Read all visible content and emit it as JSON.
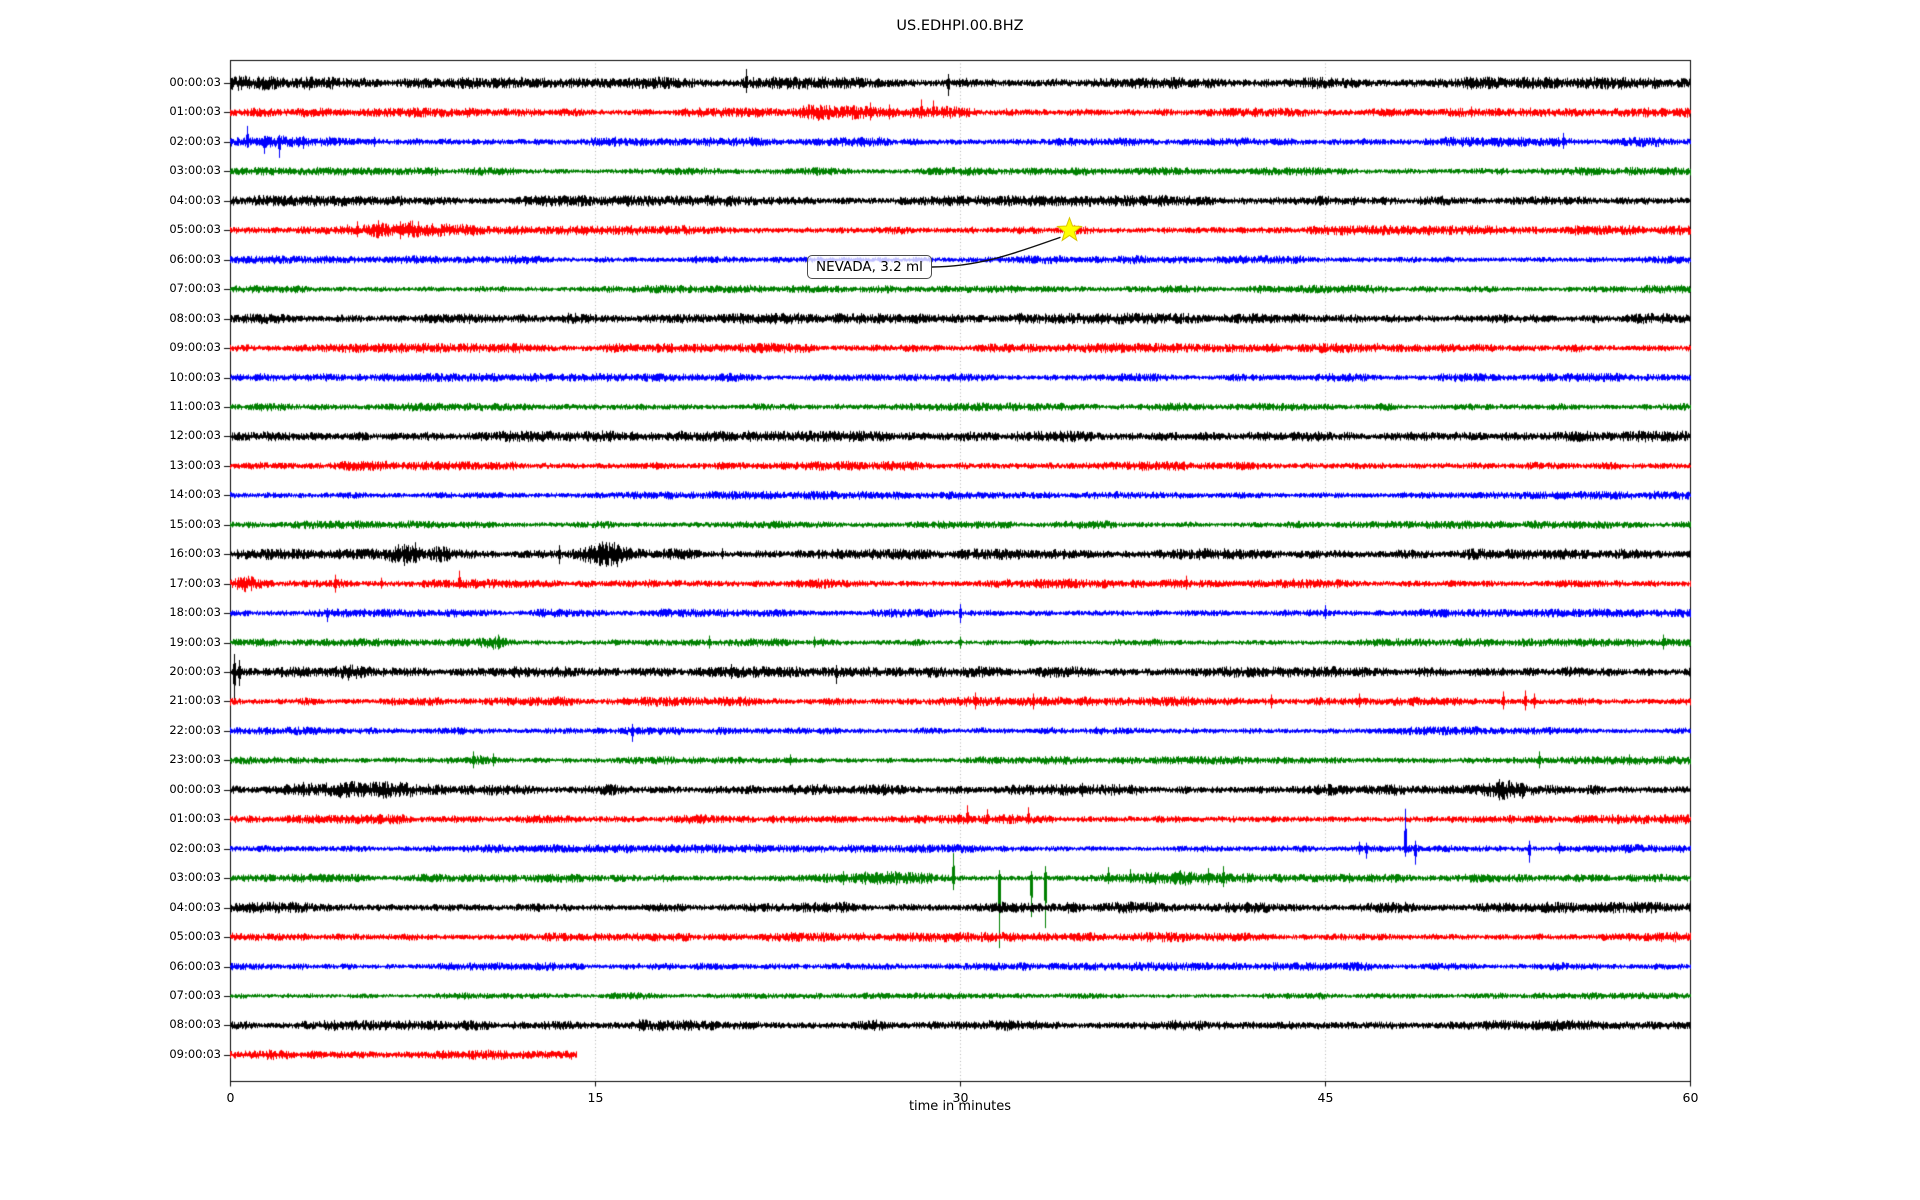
{
  "title": "US.EDHPI.00.BHZ",
  "x_axis_label": "time in minutes",
  "annotation": {
    "text": "NEVADA, 3.2 ml"
  },
  "colors": {
    "trace_black": "#000000",
    "trace_red": "#ff0000",
    "trace_blue": "#0000ff",
    "trace_green": "#008000",
    "grid": "#b3b3b3",
    "marker_fill": "#ffff00",
    "marker_edge": "#d9c400",
    "axis": "#000000"
  },
  "chart_data": {
    "type": "line",
    "subtype": "helicorder-seismogram",
    "title": "US.EDHPI.00.BHZ",
    "xlabel": "time in minutes",
    "xlim": [
      0,
      60
    ],
    "x_ticks": [
      0,
      15,
      30,
      45,
      60
    ],
    "grid": "vertical dotted gridlines at 15, 30, 45 minutes",
    "legend": "none",
    "minutes_per_row": 60,
    "annotation": {
      "text": "NEVADA, 3.2 ml",
      "row_index": 5,
      "row_label": "05:00:03",
      "minute": 34.5,
      "marker": "star",
      "marker_color": "#ffff00"
    },
    "rows": [
      {
        "label": "00:00:03",
        "color": "#000000",
        "amp": 5,
        "events": [
          {
            "t": 0,
            "w": 5,
            "k": 0.35
          }
        ],
        "spikes": [
          {
            "t": 21.2,
            "u": 14,
            "d": 10
          },
          {
            "t": 29.5,
            "u": 9,
            "d": 13
          }
        ]
      },
      {
        "label": "01:00:03",
        "color": "#ff0000",
        "amp": 4,
        "events": [
          {
            "t": 25.5,
            "w": 3.5,
            "k": 0.9
          }
        ],
        "spikes": [
          {
            "t": 26.3,
            "u": 10,
            "d": 8
          },
          {
            "t": 27.1,
            "u": 8,
            "d": 7
          },
          {
            "t": 28.4,
            "u": 13,
            "d": 6
          },
          {
            "t": 28.9,
            "u": 12,
            "d": 5
          },
          {
            "t": 51,
            "u": 6,
            "d": 5
          }
        ]
      },
      {
        "label": "02:00:03",
        "color": "#0000ff",
        "amp": 4,
        "events": [
          {
            "t": 1.2,
            "w": 1.2,
            "k": 0.5
          }
        ],
        "spikes": [
          {
            "t": 0.7,
            "u": 16,
            "d": 6
          },
          {
            "t": 1.4,
            "u": 6,
            "d": 12
          },
          {
            "t": 2.0,
            "u": 7,
            "d": 16
          },
          {
            "t": 3.0,
            "u": 6,
            "d": 7
          },
          {
            "t": 5.9,
            "u": 5,
            "d": 5
          },
          {
            "t": 54.8,
            "u": 9,
            "d": 7
          }
        ]
      },
      {
        "label": "03:00:03",
        "color": "#008000",
        "amp": 3.4,
        "events": [],
        "spikes": []
      },
      {
        "label": "04:00:03",
        "color": "#000000",
        "amp": 4.5,
        "events": [],
        "spikes": []
      },
      {
        "label": "05:00:03",
        "color": "#ff0000",
        "amp": 4,
        "events": [
          {
            "t": 6.5,
            "w": 1.8,
            "k": 1.3
          },
          {
            "t": 9.8,
            "w": 0.6,
            "k": 0.8
          },
          {
            "t": 34.5,
            "w": 0.3,
            "k": 0.6
          }
        ],
        "spikes": [
          {
            "t": 5.2,
            "u": 9,
            "d": 7
          },
          {
            "t": 6.1,
            "u": 10,
            "d": 8
          },
          {
            "t": 7,
            "u": 9,
            "d": 9
          },
          {
            "t": 8.3,
            "u": 7,
            "d": 6
          }
        ]
      },
      {
        "label": "06:00:03",
        "color": "#0000ff",
        "amp": 3.5,
        "events": [],
        "spikes": []
      },
      {
        "label": "07:00:03",
        "color": "#008000",
        "amp": 3.4,
        "events": [],
        "spikes": []
      },
      {
        "label": "08:00:03",
        "color": "#000000",
        "amp": 4.5,
        "events": [],
        "spikes": []
      },
      {
        "label": "09:00:03",
        "color": "#ff0000",
        "amp": 4,
        "events": [],
        "spikes": []
      },
      {
        "label": "10:00:03",
        "color": "#0000ff",
        "amp": 3.5,
        "events": [],
        "spikes": []
      },
      {
        "label": "11:00:03",
        "color": "#008000",
        "amp": 3.4,
        "events": [],
        "spikes": []
      },
      {
        "label": "12:00:03",
        "color": "#000000",
        "amp": 4.5,
        "events": [],
        "spikes": []
      },
      {
        "label": "13:00:03",
        "color": "#ff0000",
        "amp": 4,
        "events": [],
        "spikes": []
      },
      {
        "label": "14:00:03",
        "color": "#0000ff",
        "amp": 3.5,
        "events": [],
        "spikes": []
      },
      {
        "label": "15:00:03",
        "color": "#008000",
        "amp": 3.4,
        "events": [],
        "spikes": []
      },
      {
        "label": "16:00:03",
        "color": "#000000",
        "amp": 4.5,
        "events": [
          {
            "t": 7.4,
            "w": 0.8,
            "k": 1.3
          },
          {
            "t": 8.8,
            "w": 0.5,
            "k": 0.9
          },
          {
            "t": 15.5,
            "w": 0.9,
            "k": 1.2
          }
        ],
        "spikes": [
          {
            "t": 6.9,
            "u": 10,
            "d": 8
          },
          {
            "t": 7.6,
            "u": 12,
            "d": 9
          },
          {
            "t": 13.5,
            "u": 9,
            "d": 10
          },
          {
            "t": 15.2,
            "u": 8,
            "d": 12
          },
          {
            "t": 15.9,
            "u": 9,
            "d": 13
          },
          {
            "t": 20.2,
            "u": 6,
            "d": 5
          }
        ]
      },
      {
        "label": "17:00:03",
        "color": "#ff0000",
        "amp": 4,
        "events": [
          {
            "t": 0.7,
            "w": 0.5,
            "k": 1.2
          }
        ],
        "spikes": [
          {
            "t": 4.3,
            "u": 9,
            "d": 9
          },
          {
            "t": 6.2,
            "u": 6,
            "d": 5
          },
          {
            "t": 9.4,
            "u": 13,
            "d": 5
          },
          {
            "t": 39.3,
            "u": 8,
            "d": 6
          }
        ]
      },
      {
        "label": "18:00:03",
        "color": "#0000ff",
        "amp": 3.5,
        "events": [],
        "spikes": [
          {
            "t": 4,
            "u": 5,
            "d": 9
          },
          {
            "t": 30,
            "u": 9,
            "d": 10
          },
          {
            "t": 45,
            "u": 8,
            "d": 6
          }
        ]
      },
      {
        "label": "19:00:03",
        "color": "#008000",
        "amp": 3.4,
        "events": [
          {
            "t": 11,
            "w": 0.6,
            "k": 1
          }
        ],
        "spikes": [
          {
            "t": 11,
            "u": 8,
            "d": 7
          },
          {
            "t": 19.7,
            "u": 7,
            "d": 6
          },
          {
            "t": 24,
            "u": 6,
            "d": 5
          },
          {
            "t": 30,
            "u": 6,
            "d": 6
          },
          {
            "t": 58.9,
            "u": 8,
            "d": 7
          }
        ]
      },
      {
        "label": "20:00:03",
        "color": "#000000",
        "amp": 4.5,
        "events": [
          {
            "t": 4.9,
            "w": 0.7,
            "k": 0.9
          }
        ],
        "spikes": [
          {
            "t": 0.15,
            "u": 18,
            "d": 27
          },
          {
            "t": 0.35,
            "u": 12,
            "d": 14
          },
          {
            "t": 20.6,
            "u": 8,
            "d": 7
          },
          {
            "t": 24.9,
            "u": 7,
            "d": 12
          }
        ]
      },
      {
        "label": "21:00:03",
        "color": "#ff0000",
        "amp": 4,
        "events": [],
        "spikes": [
          {
            "t": 30.6,
            "u": 9,
            "d": 8
          },
          {
            "t": 33,
            "u": 8,
            "d": 8
          },
          {
            "t": 42.8,
            "u": 7,
            "d": 7
          },
          {
            "t": 46.4,
            "u": 8,
            "d": 6
          },
          {
            "t": 52.3,
            "u": 10,
            "d": 8
          },
          {
            "t": 53.2,
            "u": 11,
            "d": 9
          },
          {
            "t": 53.6,
            "u": 8,
            "d": 7
          }
        ]
      },
      {
        "label": "22:00:03",
        "color": "#0000ff",
        "amp": 3.5,
        "events": [],
        "spikes": [
          {
            "t": 16.5,
            "u": 7,
            "d": 11
          }
        ]
      },
      {
        "label": "23:00:03",
        "color": "#008000",
        "amp": 3.4,
        "events": [
          {
            "t": 10.4,
            "w": 0.5,
            "k": 0.8
          }
        ],
        "spikes": [
          {
            "t": 10,
            "u": 9,
            "d": 8
          },
          {
            "t": 10.8,
            "u": 7,
            "d": 6
          },
          {
            "t": 23,
            "u": 6,
            "d": 5
          },
          {
            "t": 53.8,
            "u": 9,
            "d": 8
          },
          {
            "t": 57.5,
            "u": 6,
            "d": 5
          }
        ]
      },
      {
        "label": "00:00:03",
        "color": "#000000",
        "amp": 4.5,
        "events": [
          {
            "t": 5,
            "w": 2.5,
            "k": 0.7
          },
          {
            "t": 52.6,
            "w": 0.8,
            "k": 1.1
          }
        ],
        "spikes": [
          {
            "t": 3,
            "u": 8,
            "d": 7
          },
          {
            "t": 4.5,
            "u": 7,
            "d": 7
          },
          {
            "t": 6,
            "u": 8,
            "d": 6
          },
          {
            "t": 35,
            "u": 7,
            "d": 7
          },
          {
            "t": 52.1,
            "u": 8,
            "d": 8
          },
          {
            "t": 53.1,
            "u": 7,
            "d": 9
          }
        ]
      },
      {
        "label": "01:00:03",
        "color": "#ff0000",
        "amp": 4,
        "events": [],
        "spikes": [
          {
            "t": 30.3,
            "u": 14,
            "d": 5
          },
          {
            "t": 31.1,
            "u": 10,
            "d": 5
          },
          {
            "t": 32.8,
            "u": 12,
            "d": 5
          }
        ]
      },
      {
        "label": "02:00:03",
        "color": "#0000ff",
        "amp": 3.5,
        "events": [
          {
            "t": 48.4,
            "w": 0.5,
            "k": 0.8
          }
        ],
        "spikes": [
          {
            "t": 46.4,
            "u": 7,
            "d": 6
          },
          {
            "t": 46.7,
            "u": 6,
            "d": 10
          },
          {
            "t": 48.3,
            "u": 40,
            "d": 8
          },
          {
            "t": 48.7,
            "u": 8,
            "d": 16
          },
          {
            "t": 53.4,
            "u": 8,
            "d": 14
          },
          {
            "t": 54.6,
            "u": 6,
            "d": 5
          }
        ]
      },
      {
        "label": "03:00:03",
        "color": "#008000",
        "amp": 3.4,
        "events": [
          {
            "t": 27,
            "w": 2,
            "k": 0.6
          },
          {
            "t": 38,
            "w": 3,
            "k": 0.9
          }
        ],
        "spikes": [
          {
            "t": 25.2,
            "u": 7,
            "d": 7
          },
          {
            "t": 27,
            "u": 7,
            "d": 6
          },
          {
            "t": 29.7,
            "u": 25,
            "d": 12
          },
          {
            "t": 31.6,
            "u": 8,
            "d": 70
          },
          {
            "t": 32.9,
            "u": 7,
            "d": 39
          },
          {
            "t": 33.5,
            "u": 12,
            "d": 50
          },
          {
            "t": 36.1,
            "u": 11,
            "d": 6
          },
          {
            "t": 37,
            "u": 9,
            "d": 5
          },
          {
            "t": 40.2,
            "u": 10,
            "d": 7
          },
          {
            "t": 40.8,
            "u": 12,
            "d": 9
          },
          {
            "t": 46,
            "u": 5,
            "d": 5
          }
        ]
      },
      {
        "label": "04:00:03",
        "color": "#000000",
        "amp": 4.5,
        "events": [],
        "spikes": []
      },
      {
        "label": "05:00:03",
        "color": "#ff0000",
        "amp": 4,
        "events": [],
        "spikes": []
      },
      {
        "label": "06:00:03",
        "color": "#0000ff",
        "amp": 3.5,
        "events": [],
        "spikes": []
      },
      {
        "label": "07:00:03",
        "color": "#008000",
        "amp": 2.8,
        "events": [],
        "spikes": []
      },
      {
        "label": "08:00:03",
        "color": "#000000",
        "amp": 4.5,
        "events": [],
        "spikes": []
      },
      {
        "label": "09:00:03",
        "color": "#ff0000",
        "amp": 4,
        "end": 14.2,
        "events": [],
        "spikes": []
      }
    ]
  }
}
